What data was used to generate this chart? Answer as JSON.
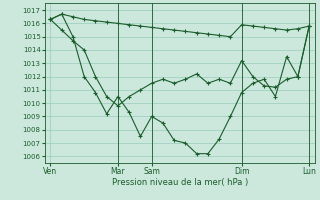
{
  "xlabel": "Pression niveau de la mer( hPa )",
  "background_color": "#cce8dd",
  "grid_color": "#99ccbb",
  "line_color": "#1a5c2a",
  "ylim": [
    1005.5,
    1017.5
  ],
  "yticks": [
    1006,
    1007,
    1008,
    1009,
    1010,
    1011,
    1012,
    1013,
    1014,
    1015,
    1016,
    1017
  ],
  "xtick_labels": [
    "Ven",
    "Mar",
    "Sam",
    "Dim",
    "Lun"
  ],
  "xtick_positions": [
    0,
    6,
    9,
    17,
    23
  ],
  "vlines": [
    6,
    9,
    17,
    23
  ],
  "line1_x": [
    0,
    1,
    2,
    3,
    4,
    5,
    6,
    7,
    8,
    9,
    10,
    11,
    12,
    13,
    14,
    15,
    16,
    17,
    18,
    19,
    20,
    21,
    22,
    23
  ],
  "line1": [
    1016.3,
    1016.7,
    1016.5,
    1016.3,
    1016.2,
    1016.1,
    1016.0,
    1015.9,
    1015.8,
    1015.7,
    1015.6,
    1015.5,
    1015.4,
    1015.3,
    1015.2,
    1015.1,
    1015.0,
    1015.9,
    1015.8,
    1015.7,
    1015.6,
    1015.5,
    1015.6,
    1015.8
  ],
  "line2_x": [
    0,
    1,
    2,
    3,
    4,
    5,
    6,
    7,
    8,
    9,
    10,
    11,
    12,
    13,
    14,
    15,
    16,
    17,
    18,
    19,
    20,
    21,
    22,
    23
  ],
  "line2": [
    1016.3,
    1015.5,
    1014.7,
    1014.0,
    1012.0,
    1010.5,
    1009.8,
    1010.5,
    1011.0,
    1011.5,
    1011.8,
    1011.5,
    1011.8,
    1012.2,
    1011.5,
    1011.8,
    1011.5,
    1013.2,
    1012.0,
    1011.3,
    1011.2,
    1011.8,
    1012.0,
    1015.8
  ],
  "line3_x": [
    0,
    1,
    2,
    3,
    4,
    5,
    6,
    7,
    8,
    9,
    10,
    11,
    12,
    13,
    14,
    15,
    16,
    17,
    18,
    19,
    20,
    21,
    22,
    23
  ],
  "line3": [
    1016.3,
    1016.7,
    1015.0,
    1012.0,
    1010.8,
    1009.2,
    1010.5,
    1009.3,
    1007.5,
    1009.0,
    1008.5,
    1007.2,
    1007.0,
    1006.2,
    1006.2,
    1007.3,
    1009.0,
    1010.8,
    1011.5,
    1011.8,
    1010.5,
    1013.5,
    1012.0,
    1015.8
  ],
  "n_points": 24
}
